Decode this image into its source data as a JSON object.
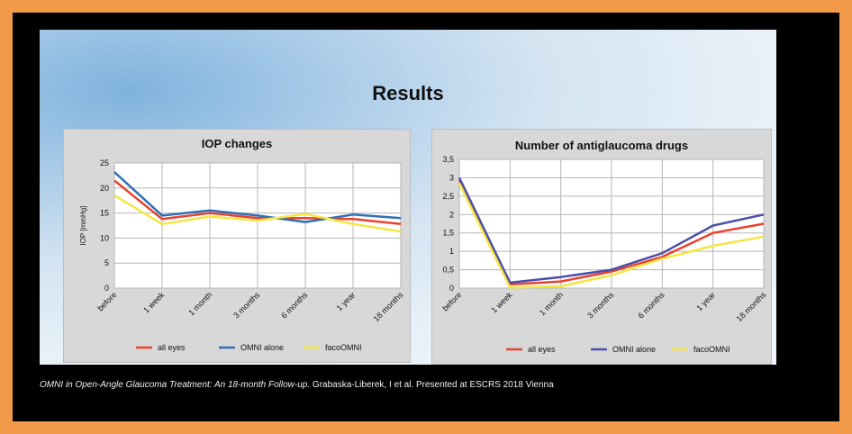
{
  "slide": {
    "title": "Results"
  },
  "caption": {
    "italic": "OMNI in Open-Angle Glaucoma Treatment: An 18-month Follow-up.",
    "rest": " Grabaska-Liberek, I et al. Presented at ESCRS 2018 Vienna"
  },
  "chart_data": [
    {
      "type": "line",
      "title": "IOP changes",
      "ylabel": "IOP [mmHg]",
      "xlabel": "",
      "ylim": [
        0,
        25
      ],
      "yticks": [
        "0",
        "5",
        "10",
        "15",
        "20",
        "25"
      ],
      "grid": true,
      "legend": "bottom",
      "categories": [
        "before",
        "1 week",
        "1 month",
        "3 months",
        "6 months",
        "1 year",
        "18 months"
      ],
      "series": [
        {
          "name": "all eyes",
          "color": "#e8432f",
          "values": [
            21.5,
            13.8,
            15.0,
            14.0,
            14.0,
            13.8,
            12.8
          ]
        },
        {
          "name": "OMNI alone",
          "color": "#2f6fb5",
          "values": [
            23.2,
            14.5,
            15.5,
            14.5,
            13.2,
            14.7,
            14.0
          ]
        },
        {
          "name": "facoOMNI",
          "color": "#f5e642",
          "values": [
            18.5,
            12.8,
            14.3,
            13.5,
            14.8,
            12.8,
            11.3
          ]
        }
      ]
    },
    {
      "type": "line",
      "title": "Number of antiglaucoma drugs",
      "ylabel": "",
      "xlabel": "",
      "ylim": [
        0,
        3.5
      ],
      "yticks": [
        "0",
        "0,5",
        "1",
        "1,5",
        "2",
        "2,5",
        "3",
        "3,5"
      ],
      "grid": true,
      "legend": "bottom",
      "categories": [
        "before",
        "1 week",
        "1 month",
        "3 months",
        "6 months",
        "1 year",
        "18 months"
      ],
      "series": [
        {
          "name": "all eyes",
          "color": "#e8432f",
          "values": [
            2.95,
            0.1,
            0.18,
            0.45,
            0.85,
            1.5,
            1.75
          ]
        },
        {
          "name": "OMNI alone",
          "color": "#4a4fa8",
          "values": [
            3.0,
            0.15,
            0.3,
            0.5,
            0.95,
            1.7,
            2.0
          ]
        },
        {
          "name": "facoOMNI",
          "color": "#f5e642",
          "values": [
            2.85,
            0.02,
            0.05,
            0.35,
            0.8,
            1.15,
            1.4
          ]
        }
      ]
    }
  ]
}
